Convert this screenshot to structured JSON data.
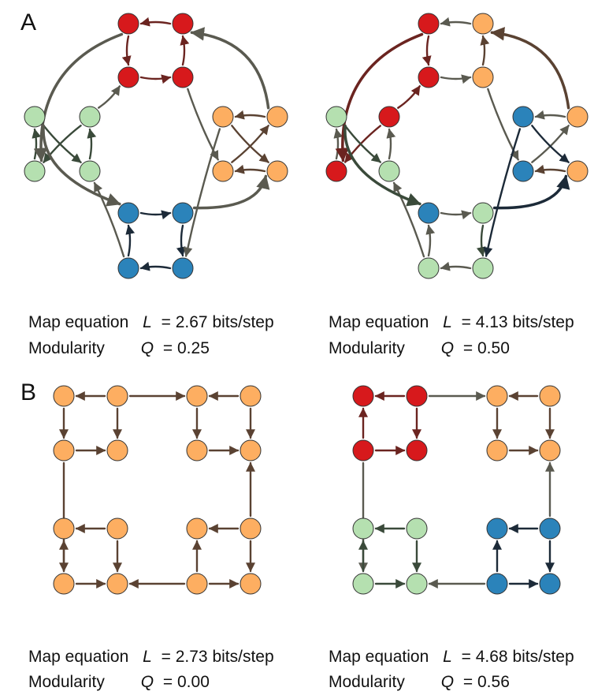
{
  "panels": {
    "A": {
      "letter": "A"
    },
    "B": {
      "letter": "B"
    }
  },
  "captions": [
    {
      "map_label": "Map equation",
      "map_symbol": "L",
      "map_value": "= 2.67 bits/step",
      "mod_label": "Modularity",
      "mod_symbol": "Q",
      "mod_value": "= 0.25"
    },
    {
      "map_label": "Map equation",
      "map_symbol": "L",
      "map_value": "= 4.13 bits/step",
      "mod_label": "Modularity",
      "mod_symbol": "Q",
      "mod_value": "= 0.50"
    },
    {
      "map_label": "Map equation",
      "map_symbol": "L",
      "map_value": "= 2.73 bits/step",
      "mod_label": "Modularity",
      "mod_symbol": "Q",
      "mod_value": "= 0.00"
    },
    {
      "map_label": "Map equation",
      "map_symbol": "L",
      "map_value": "= 4.68 bits/step",
      "mod_label": "Modularity",
      "mod_symbol": "Q",
      "mod_value": "= 0.56"
    }
  ],
  "colors": {
    "red": "#d7191c",
    "orange": "#fdae61",
    "green": "#b5e0b0",
    "blue": "#2b83ba",
    "node_stroke": "#333333"
  },
  "networks": {
    "A_left": {
      "nodes": [
        "red",
        "red",
        "red",
        "red",
        "orange",
        "orange",
        "orange",
        "orange",
        "blue",
        "blue",
        "blue",
        "blue",
        "green",
        "green",
        "green",
        "green"
      ],
      "edges": [
        {
          "from": 1,
          "to": 0,
          "style": "red"
        },
        {
          "from": 0,
          "to": 2,
          "style": "red"
        },
        {
          "from": 2,
          "to": 3,
          "style": "red"
        },
        {
          "from": 3,
          "to": 1,
          "style": "red"
        },
        {
          "from": 7,
          "to": 4,
          "style": "orange"
        },
        {
          "from": 4,
          "to": 6,
          "style": "orange"
        },
        {
          "from": 6,
          "to": 5,
          "style": "orange"
        },
        {
          "from": 5,
          "to": 7,
          "style": "orange"
        },
        {
          "from": 11,
          "to": 10,
          "style": "blue"
        },
        {
          "from": 10,
          "to": 8,
          "style": "blue"
        },
        {
          "from": 8,
          "to": 9,
          "style": "blue"
        },
        {
          "from": 9,
          "to": 11,
          "style": "blue"
        },
        {
          "from": 14,
          "to": 13,
          "style": "green"
        },
        {
          "from": 13,
          "to": 12,
          "style": "green"
        },
        {
          "from": 12,
          "to": 15,
          "style": "green"
        },
        {
          "from": 15,
          "to": 14,
          "style": "green"
        },
        {
          "from": 3,
          "to": 7,
          "style": "mixed"
        },
        {
          "from": 6,
          "to": 11,
          "style": "mixed"
        },
        {
          "from": 10,
          "to": 15,
          "style": "mixed"
        },
        {
          "from": 14,
          "to": 2,
          "style": "mixed"
        },
        {
          "from": 0,
          "to": 13,
          "style": "mixed",
          "arc": true
        },
        {
          "from": 12,
          "to": 8,
          "style": "mixed",
          "arc": true
        },
        {
          "from": 9,
          "to": 5,
          "style": "mixed",
          "arc": true
        },
        {
          "from": 4,
          "to": 1,
          "style": "mixed",
          "arc": true
        }
      ]
    },
    "A_right": {
      "nodes": [
        "red",
        "orange",
        "red",
        "orange",
        "orange",
        "orange",
        "blue",
        "blue",
        "blue",
        "green",
        "green",
        "green",
        "green",
        "red",
        "red",
        "green"
      ],
      "edges": [
        {
          "from": 1,
          "to": 0,
          "style": "mixed"
        },
        {
          "from": 0,
          "to": 2,
          "style": "red"
        },
        {
          "from": 2,
          "to": 3,
          "style": "mixed"
        },
        {
          "from": 3,
          "to": 1,
          "style": "orange"
        },
        {
          "from": 7,
          "to": 4,
          "style": "mixed"
        },
        {
          "from": 4,
          "to": 6,
          "style": "mixed"
        },
        {
          "from": 6,
          "to": 5,
          "style": "blue"
        },
        {
          "from": 5,
          "to": 7,
          "style": "orange"
        },
        {
          "from": 11,
          "to": 10,
          "style": "mixed"
        },
        {
          "from": 10,
          "to": 8,
          "style": "mixed"
        },
        {
          "from": 8,
          "to": 9,
          "style": "mixed"
        },
        {
          "from": 9,
          "to": 11,
          "style": "green"
        },
        {
          "from": 14,
          "to": 13,
          "style": "red"
        },
        {
          "from": 13,
          "to": 12,
          "style": "mixed"
        },
        {
          "from": 12,
          "to": 15,
          "style": "green"
        },
        {
          "from": 15,
          "to": 14,
          "style": "mixed"
        },
        {
          "from": 3,
          "to": 7,
          "style": "mixed"
        },
        {
          "from": 6,
          "to": 11,
          "style": "blue"
        },
        {
          "from": 10,
          "to": 15,
          "style": "mixed"
        },
        {
          "from": 14,
          "to": 2,
          "style": "red"
        },
        {
          "from": 0,
          "to": 13,
          "style": "red",
          "arc": true
        },
        {
          "from": 12,
          "to": 8,
          "style": "green",
          "arc": true
        },
        {
          "from": 9,
          "to": 5,
          "style": "blue",
          "arc": true
        },
        {
          "from": 4,
          "to": 1,
          "style": "orange",
          "arc": true
        }
      ]
    },
    "B_left": {
      "nodes": [
        "orange",
        "orange",
        "orange",
        "orange",
        "orange",
        "orange",
        "orange",
        "orange",
        "orange",
        "orange",
        "orange",
        "orange",
        "orange",
        "orange",
        "orange",
        "orange"
      ],
      "edges": [
        {
          "from": 1,
          "to": 0,
          "style": "orange"
        },
        {
          "from": 0,
          "to": 4,
          "style": "orange"
        },
        {
          "from": 4,
          "to": 5,
          "style": "orange"
        },
        {
          "from": 1,
          "to": 5,
          "style": "orange"
        },
        {
          "from": 1,
          "to": 2,
          "style": "orange"
        },
        {
          "from": 3,
          "to": 2,
          "style": "orange"
        },
        {
          "from": 2,
          "to": 6,
          "style": "orange"
        },
        {
          "from": 3,
          "to": 7,
          "style": "orange"
        },
        {
          "from": 6,
          "to": 7,
          "style": "orange"
        },
        {
          "from": 4,
          "to": 12,
          "style": "orange"
        },
        {
          "from": 11,
          "to": 7,
          "style": "orange"
        },
        {
          "from": 9,
          "to": 8,
          "style": "orange"
        },
        {
          "from": 12,
          "to": 8,
          "style": "orange"
        },
        {
          "from": 12,
          "to": 13,
          "style": "orange"
        },
        {
          "from": 9,
          "to": 13,
          "style": "orange"
        },
        {
          "from": 14,
          "to": 13,
          "style": "orange"
        },
        {
          "from": 11,
          "to": 10,
          "style": "orange"
        },
        {
          "from": 14,
          "to": 10,
          "style": "orange"
        },
        {
          "from": 14,
          "to": 15,
          "style": "orange"
        },
        {
          "from": 11,
          "to": 15,
          "style": "orange"
        }
      ]
    },
    "B_right": {
      "nodes": [
        "red",
        "red",
        "orange",
        "orange",
        "red",
        "red",
        "orange",
        "orange",
        "green",
        "green",
        "blue",
        "blue",
        "green",
        "green",
        "blue",
        "blue"
      ],
      "edges": [
        {
          "from": 1,
          "to": 0,
          "style": "red"
        },
        {
          "from": 4,
          "to": 0,
          "style": "red"
        },
        {
          "from": 4,
          "to": 5,
          "style": "red"
        },
        {
          "from": 1,
          "to": 5,
          "style": "red"
        },
        {
          "from": 1,
          "to": 2,
          "style": "mixed"
        },
        {
          "from": 3,
          "to": 2,
          "style": "orange"
        },
        {
          "from": 2,
          "to": 6,
          "style": "orange"
        },
        {
          "from": 3,
          "to": 7,
          "style": "orange"
        },
        {
          "from": 6,
          "to": 7,
          "style": "orange"
        },
        {
          "from": 4,
          "to": 12,
          "style": "mixed"
        },
        {
          "from": 11,
          "to": 7,
          "style": "mixed"
        },
        {
          "from": 9,
          "to": 8,
          "style": "green"
        },
        {
          "from": 12,
          "to": 8,
          "style": "green"
        },
        {
          "from": 12,
          "to": 13,
          "style": "green"
        },
        {
          "from": 9,
          "to": 13,
          "style": "green"
        },
        {
          "from": 14,
          "to": 13,
          "style": "mixed"
        },
        {
          "from": 11,
          "to": 10,
          "style": "blue"
        },
        {
          "from": 14,
          "to": 10,
          "style": "blue"
        },
        {
          "from": 14,
          "to": 15,
          "style": "blue"
        },
        {
          "from": 11,
          "to": 15,
          "style": "blue"
        }
      ]
    }
  }
}
